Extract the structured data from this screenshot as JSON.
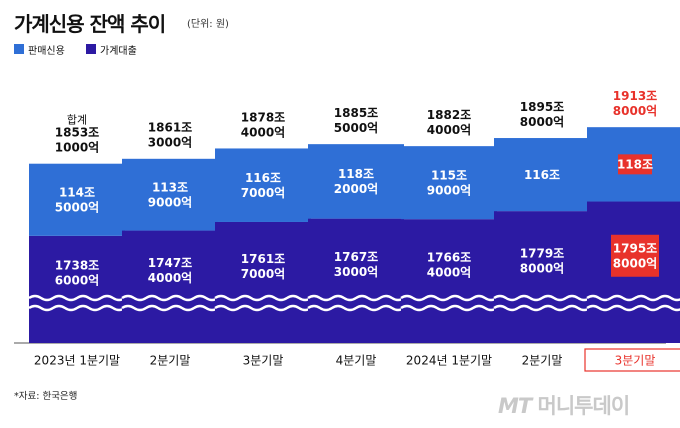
{
  "title": "가계신용 잔액 추이",
  "unit_note": "(단위: 원)",
  "colors": {
    "sales_credit": "#2f6fd6",
    "household_loan": "#2c1aa3",
    "highlight": "#e8322b",
    "axis_line": "#555555"
  },
  "source": "*자료: 한국은행",
  "logo": {
    "mark": "MT",
    "text": "머니투데이"
  },
  "chart_data": {
    "type": "bar",
    "stacked": true,
    "axis_break": true,
    "legend_position": "top-left",
    "legend": [
      "판매신용",
      "가계대출"
    ],
    "categories": [
      "2023년 1분기말",
      "2분기말",
      "3분기말",
      "4분기말",
      "2024년 1분기말",
      "2분기말",
      "3분기말"
    ],
    "highlight_index": 6,
    "total_header": "합계",
    "series": [
      {
        "name": "판매신용",
        "values": [
          114.5,
          113.9,
          116.7,
          118.2,
          115.9,
          116.0,
          118.0
        ],
        "labels": [
          [
            "114조",
            "5000억"
          ],
          [
            "113조",
            "9000억"
          ],
          [
            "116조",
            "7000억"
          ],
          [
            "118조",
            "2000억"
          ],
          [
            "115조",
            "9000억"
          ],
          [
            "116조"
          ],
          [
            "118조"
          ]
        ]
      },
      {
        "name": "가계대출",
        "values": [
          1738.6,
          1747.4,
          1761.7,
          1767.3,
          1766.4,
          1779.8,
          1795.8
        ],
        "labels": [
          [
            "1738조",
            "6000억"
          ],
          [
            "1747조",
            "4000억"
          ],
          [
            "1761조",
            "7000억"
          ],
          [
            "1767조",
            "3000억"
          ],
          [
            "1766조",
            "4000억"
          ],
          [
            "1779조",
            "8000억"
          ],
          [
            "1795조",
            "8000억"
          ]
        ]
      }
    ],
    "totals": [
      1853.1,
      1861.3,
      1878.4,
      1885.5,
      1882.4,
      1895.8,
      1913.8
    ],
    "total_labels": [
      [
        "1853조",
        "1000억"
      ],
      [
        "1861조",
        "3000억"
      ],
      [
        "1878조",
        "4000억"
      ],
      [
        "1885조",
        "5000억"
      ],
      [
        "1882조",
        "4000억"
      ],
      [
        "1895조",
        "8000억"
      ],
      [
        "1913조",
        "8000억"
      ]
    ]
  }
}
